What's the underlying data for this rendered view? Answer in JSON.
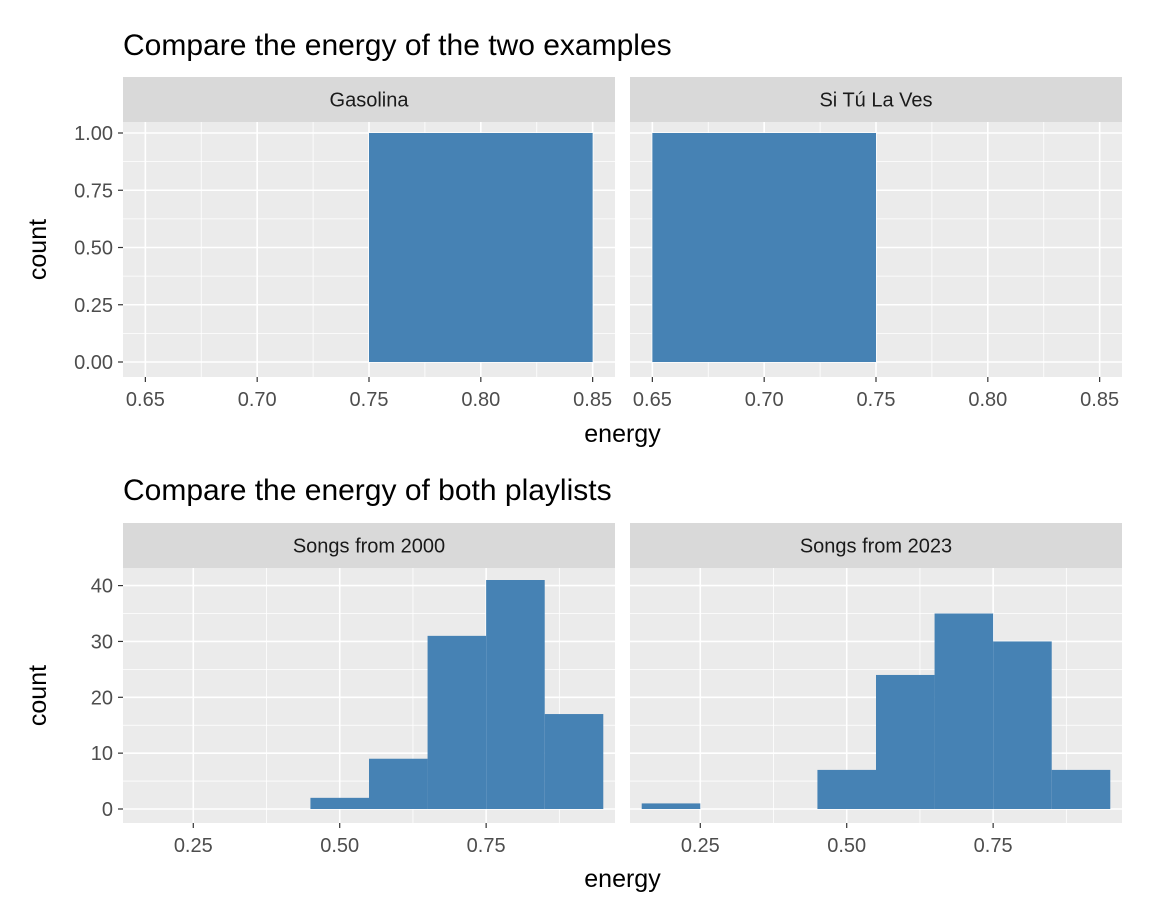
{
  "chart_data": [
    {
      "type": "bar",
      "title": "Compare the energy of the two examples",
      "xlabel": "energy",
      "ylabel": "count",
      "xlim": [
        0.64,
        0.86
      ],
      "ylim": [
        0,
        1.0
      ],
      "grid": true,
      "color": "#4682B4",
      "x_ticks": [
        0.65,
        0.7,
        0.75,
        0.8,
        0.85
      ],
      "x_tick_labels": [
        "0.65",
        "0.70",
        "0.75",
        "0.80",
        "0.85"
      ],
      "y_ticks": [
        0,
        0.25,
        0.5,
        0.75,
        1.0
      ],
      "y_tick_labels": [
        "0.00",
        "0.25",
        "0.50",
        "0.75",
        "1.00"
      ],
      "panels": [
        {
          "name": "Gasolina",
          "bins": [
            {
              "x0": 0.75,
              "x1": 0.85,
              "count": 1
            }
          ]
        },
        {
          "name": "Si Tú La Ves",
          "bins": [
            {
              "x0": 0.65,
              "x1": 0.75,
              "count": 1
            }
          ]
        }
      ]
    },
    {
      "type": "bar",
      "title": "Compare the energy of both playlists",
      "xlabel": "energy",
      "ylabel": "count",
      "xlim": [
        0.13,
        0.97
      ],
      "ylim": [
        0,
        41
      ],
      "grid": true,
      "color": "#4682B4",
      "x_ticks": [
        0.25,
        0.5,
        0.75
      ],
      "x_tick_labels": [
        "0.25",
        "0.50",
        "0.75"
      ],
      "y_ticks": [
        0,
        10,
        20,
        30,
        40
      ],
      "y_tick_labels": [
        "0",
        "10",
        "20",
        "30",
        "40"
      ],
      "panels": [
        {
          "name": "Songs from 2000",
          "bins": [
            {
              "x0": 0.45,
              "x1": 0.55,
              "count": 2
            },
            {
              "x0": 0.55,
              "x1": 0.65,
              "count": 9
            },
            {
              "x0": 0.65,
              "x1": 0.75,
              "count": 31
            },
            {
              "x0": 0.75,
              "x1": 0.85,
              "count": 41
            },
            {
              "x0": 0.85,
              "x1": 0.95,
              "count": 17
            }
          ]
        },
        {
          "name": "Songs from 2023",
          "bins": [
            {
              "x0": 0.15,
              "x1": 0.25,
              "count": 1
            },
            {
              "x0": 0.45,
              "x1": 0.55,
              "count": 7
            },
            {
              "x0": 0.55,
              "x1": 0.65,
              "count": 24
            },
            {
              "x0": 0.65,
              "x1": 0.75,
              "count": 35
            },
            {
              "x0": 0.75,
              "x1": 0.85,
              "count": 30
            },
            {
              "x0": 0.85,
              "x1": 0.95,
              "count": 7
            }
          ]
        }
      ]
    }
  ]
}
